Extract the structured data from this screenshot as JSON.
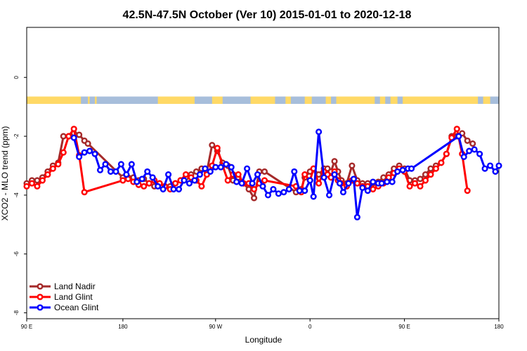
{
  "chart_data": {
    "type": "line",
    "title": "42.5N-47.5N October (Ver 10)   2015-01-01 to 2020-12-18",
    "xlabel": "Longitude",
    "ylabel": "XCO2 - MLO trend (ppm)",
    "xlim": [
      -90,
      180
    ],
    "ylim": [
      -8.2,
      1.7
    ],
    "x_ticks": [
      {
        "value": -90,
        "label": "90 E"
      },
      {
        "value": -35,
        "label": "180"
      },
      {
        "value": 18,
        "label": "90 W"
      },
      {
        "value": 72,
        "label": "0"
      },
      {
        "value": 126,
        "label": "90 E"
      },
      {
        "value": 180,
        "label": "180"
      }
    ],
    "y_ticks": [
      {
        "value": 0,
        "label": "0"
      },
      {
        "value": -2,
        "label": "-2"
      },
      {
        "value": -4,
        "label": "-4"
      },
      {
        "value": -6,
        "label": "-6"
      },
      {
        "value": -8,
        "label": "-8"
      }
    ],
    "land_mask": {
      "y_range": [
        -0.9,
        -0.65
      ],
      "colors": {
        "land": "#FFD966",
        "ocean": "#A7BEDB"
      },
      "land_segments": [
        [
          -90,
          -59
        ],
        [
          -55,
          -54
        ],
        [
          -51,
          -50
        ],
        [
          -15,
          6
        ],
        [
          16,
          22
        ],
        [
          38,
          52
        ],
        [
          58,
          61
        ],
        [
          69,
          73
        ],
        [
          81,
          84
        ],
        [
          87,
          109
        ],
        [
          112,
          115
        ],
        [
          118,
          122
        ],
        [
          125,
          168
        ],
        [
          171,
          175
        ]
      ]
    },
    "legend_position": "bottom-left",
    "series": [
      {
        "name": "Land Nadir",
        "color": "#A52A2A",
        "points": [
          [
            -90,
            -3.6
          ],
          [
            -87,
            -3.5
          ],
          [
            -84,
            -3.5
          ],
          [
            -81,
            -3.4
          ],
          [
            -78,
            -3.2
          ],
          [
            -75,
            -3.0
          ],
          [
            -72,
            -2.9
          ],
          [
            -69,
            -2.0
          ],
          [
            -66,
            -2.0
          ],
          [
            -63,
            -1.9
          ],
          [
            -60,
            -1.95
          ],
          [
            -57,
            -2.15
          ],
          [
            -55,
            -2.25
          ],
          [
            -35,
            -3.4
          ],
          [
            -32,
            -3.4
          ],
          [
            -29,
            -3.4
          ],
          [
            -26,
            -3.5
          ],
          [
            -23,
            -3.45
          ],
          [
            -20,
            -3.6
          ],
          [
            -17,
            -3.7
          ],
          [
            -14,
            -3.6
          ],
          [
            -11,
            -3.7
          ],
          [
            -8,
            -3.7
          ],
          [
            -5,
            -3.6
          ],
          [
            -2,
            -3.5
          ],
          [
            1,
            -3.4
          ],
          [
            4,
            -3.3
          ],
          [
            7,
            -3.2
          ],
          [
            10,
            -3.1
          ],
          [
            13,
            -3.2
          ],
          [
            16,
            -2.3
          ],
          [
            19,
            -2.5
          ],
          [
            22,
            -2.9
          ],
          [
            25,
            -3.0
          ],
          [
            28,
            -3.5
          ],
          [
            31,
            -3.4
          ],
          [
            34,
            -3.6
          ],
          [
            37,
            -3.8
          ],
          [
            40,
            -4.1
          ],
          [
            43,
            -3.2
          ],
          [
            46,
            -3.2
          ],
          [
            64,
            -3.9
          ],
          [
            67,
            -3.8
          ],
          [
            69,
            -3.4
          ],
          [
            72,
            -3.2
          ],
          [
            74,
            -3.1
          ],
          [
            77,
            -3.3
          ],
          [
            80,
            -3.1
          ],
          [
            82,
            -3.1
          ],
          [
            84,
            -3.2
          ],
          [
            86,
            -2.85
          ],
          [
            88,
            -3.2
          ],
          [
            90,
            -3.5
          ],
          [
            93,
            -3.6
          ],
          [
            96,
            -3.0
          ],
          [
            99,
            -3.5
          ],
          [
            102,
            -3.6
          ],
          [
            105,
            -3.6
          ],
          [
            108,
            -3.6
          ],
          [
            111,
            -3.55
          ],
          [
            114,
            -3.4
          ],
          [
            117,
            -3.3
          ],
          [
            120,
            -3.1
          ],
          [
            123,
            -3.0
          ],
          [
            126,
            -3.1
          ],
          [
            129,
            -3.5
          ],
          [
            132,
            -3.5
          ],
          [
            135,
            -3.45
          ],
          [
            138,
            -3.3
          ],
          [
            141,
            -3.1
          ],
          [
            144,
            -3.0
          ],
          [
            147,
            -2.9
          ],
          [
            150,
            -2.6
          ],
          [
            153,
            -2.0
          ],
          [
            156,
            -2.0
          ],
          [
            159,
            -1.9
          ],
          [
            162,
            -2.15
          ],
          [
            165,
            -2.25
          ]
        ]
      },
      {
        "name": "Land Glint",
        "color": "#FF0000",
        "points": [
          [
            -90,
            -3.7
          ],
          [
            -87,
            -3.6
          ],
          [
            -84,
            -3.7
          ],
          [
            -81,
            -3.5
          ],
          [
            -78,
            -3.3
          ],
          [
            -75,
            -3.1
          ],
          [
            -72,
            -2.95
          ],
          [
            -69,
            -2.55
          ],
          [
            -66,
            -2.0
          ],
          [
            -63,
            -1.75
          ],
          [
            -60,
            -2.65
          ],
          [
            -57,
            -3.9
          ],
          [
            -35,
            -3.5
          ],
          [
            -32,
            -3.45
          ],
          [
            -29,
            -3.55
          ],
          [
            -26,
            -3.65
          ],
          [
            -23,
            -3.7
          ],
          [
            -20,
            -3.6
          ],
          [
            -17,
            -3.5
          ],
          [
            -14,
            -3.6
          ],
          [
            -11,
            -3.7
          ],
          [
            -8,
            -3.8
          ],
          [
            -5,
            -3.6
          ],
          [
            -2,
            -3.5
          ],
          [
            1,
            -3.3
          ],
          [
            4,
            -3.4
          ],
          [
            7,
            -3.5
          ],
          [
            10,
            -3.7
          ],
          [
            13,
            -3.3
          ],
          [
            16,
            -3.0
          ],
          [
            19,
            -2.4
          ],
          [
            22,
            -3.0
          ],
          [
            25,
            -3.5
          ],
          [
            28,
            -3.3
          ],
          [
            31,
            -3.3
          ],
          [
            34,
            -3.6
          ],
          [
            37,
            -3.6
          ],
          [
            40,
            -3.8
          ],
          [
            43,
            -3.6
          ],
          [
            46,
            -3.5
          ],
          [
            64,
            -3.7
          ],
          [
            67,
            -3.9
          ],
          [
            69,
            -3.3
          ],
          [
            72,
            -3.5
          ],
          [
            74,
            -3.1
          ],
          [
            77,
            -3.6
          ],
          [
            80,
            -3.2
          ],
          [
            82,
            -3.3
          ],
          [
            84,
            -3.4
          ],
          [
            86,
            -3.2
          ],
          [
            88,
            -3.5
          ],
          [
            90,
            -3.6
          ],
          [
            93,
            -3.7
          ],
          [
            96,
            -3.5
          ],
          [
            99,
            -3.6
          ],
          [
            102,
            -3.7
          ],
          [
            105,
            -3.7
          ],
          [
            108,
            -3.8
          ],
          [
            111,
            -3.7
          ],
          [
            114,
            -3.6
          ],
          [
            117,
            -3.4
          ],
          [
            120,
            -3.25
          ],
          [
            123,
            -3.1
          ],
          [
            126,
            -3.2
          ],
          [
            129,
            -3.7
          ],
          [
            132,
            -3.6
          ],
          [
            135,
            -3.7
          ],
          [
            138,
            -3.5
          ],
          [
            141,
            -3.3
          ],
          [
            144,
            -3.1
          ],
          [
            147,
            -2.9
          ],
          [
            150,
            -2.6
          ],
          [
            153,
            -2.05
          ],
          [
            156,
            -1.75
          ],
          [
            159,
            -2.6
          ],
          [
            162,
            -3.85
          ]
        ]
      },
      {
        "name": "Ocean Glint",
        "color": "#0000FF",
        "points": [
          [
            -63,
            -2.05
          ],
          [
            -60,
            -2.7
          ],
          [
            -57,
            -2.55
          ],
          [
            -54,
            -2.5
          ],
          [
            -51,
            -2.6
          ],
          [
            -48,
            -3.15
          ],
          [
            -45,
            -2.95
          ],
          [
            -42,
            -3.2
          ],
          [
            -39,
            -3.2
          ],
          [
            -36,
            -2.95
          ],
          [
            -33,
            -3.3
          ],
          [
            -30,
            -2.95
          ],
          [
            -27,
            -3.55
          ],
          [
            -24,
            -3.45
          ],
          [
            -21,
            -3.2
          ],
          [
            -18,
            -3.4
          ],
          [
            -15,
            -3.7
          ],
          [
            -12,
            -3.8
          ],
          [
            -9,
            -3.3
          ],
          [
            -6,
            -3.8
          ],
          [
            -3,
            -3.8
          ],
          [
            0,
            -3.5
          ],
          [
            3,
            -3.6
          ],
          [
            6,
            -3.5
          ],
          [
            9,
            -3.3
          ],
          [
            12,
            -3.1
          ],
          [
            15,
            -3.2
          ],
          [
            18,
            -3.05
          ],
          [
            21,
            -3.05
          ],
          [
            24,
            -2.95
          ],
          [
            27,
            -3.05
          ],
          [
            30,
            -3.55
          ],
          [
            33,
            -3.6
          ],
          [
            36,
            -3.1
          ],
          [
            39,
            -3.6
          ],
          [
            42,
            -3.3
          ],
          [
            45,
            -3.7
          ],
          [
            48,
            -4.0
          ],
          [
            51,
            -3.8
          ],
          [
            54,
            -3.95
          ],
          [
            57,
            -3.9
          ],
          [
            60,
            -3.8
          ],
          [
            63,
            -3.2
          ],
          [
            66,
            -3.85
          ],
          [
            69,
            -3.85
          ],
          [
            72,
            -3.5
          ],
          [
            74,
            -4.05
          ],
          [
            77,
            -1.85
          ],
          [
            80,
            -3.4
          ],
          [
            83,
            -4.0
          ],
          [
            86,
            -3.3
          ],
          [
            89,
            -3.6
          ],
          [
            91,
            -3.9
          ],
          [
            94,
            -3.6
          ],
          [
            97,
            -3.45
          ],
          [
            99,
            -4.75
          ],
          [
            102,
            -3.75
          ],
          [
            105,
            -3.85
          ],
          [
            108,
            -3.55
          ],
          [
            111,
            -3.6
          ],
          [
            113,
            -3.6
          ],
          [
            116,
            -3.55
          ],
          [
            119,
            -3.55
          ],
          [
            122,
            -3.2
          ],
          [
            125,
            -3.15
          ],
          [
            128,
            -3.1
          ],
          [
            130,
            -3.1
          ],
          [
            157,
            -2.0
          ],
          [
            160,
            -2.7
          ],
          [
            163,
            -2.5
          ],
          [
            166,
            -2.45
          ],
          [
            169,
            -2.6
          ],
          [
            172,
            -3.1
          ],
          [
            175,
            -3.0
          ],
          [
            178,
            -3.2
          ],
          [
            180,
            -3.0
          ]
        ]
      }
    ]
  }
}
